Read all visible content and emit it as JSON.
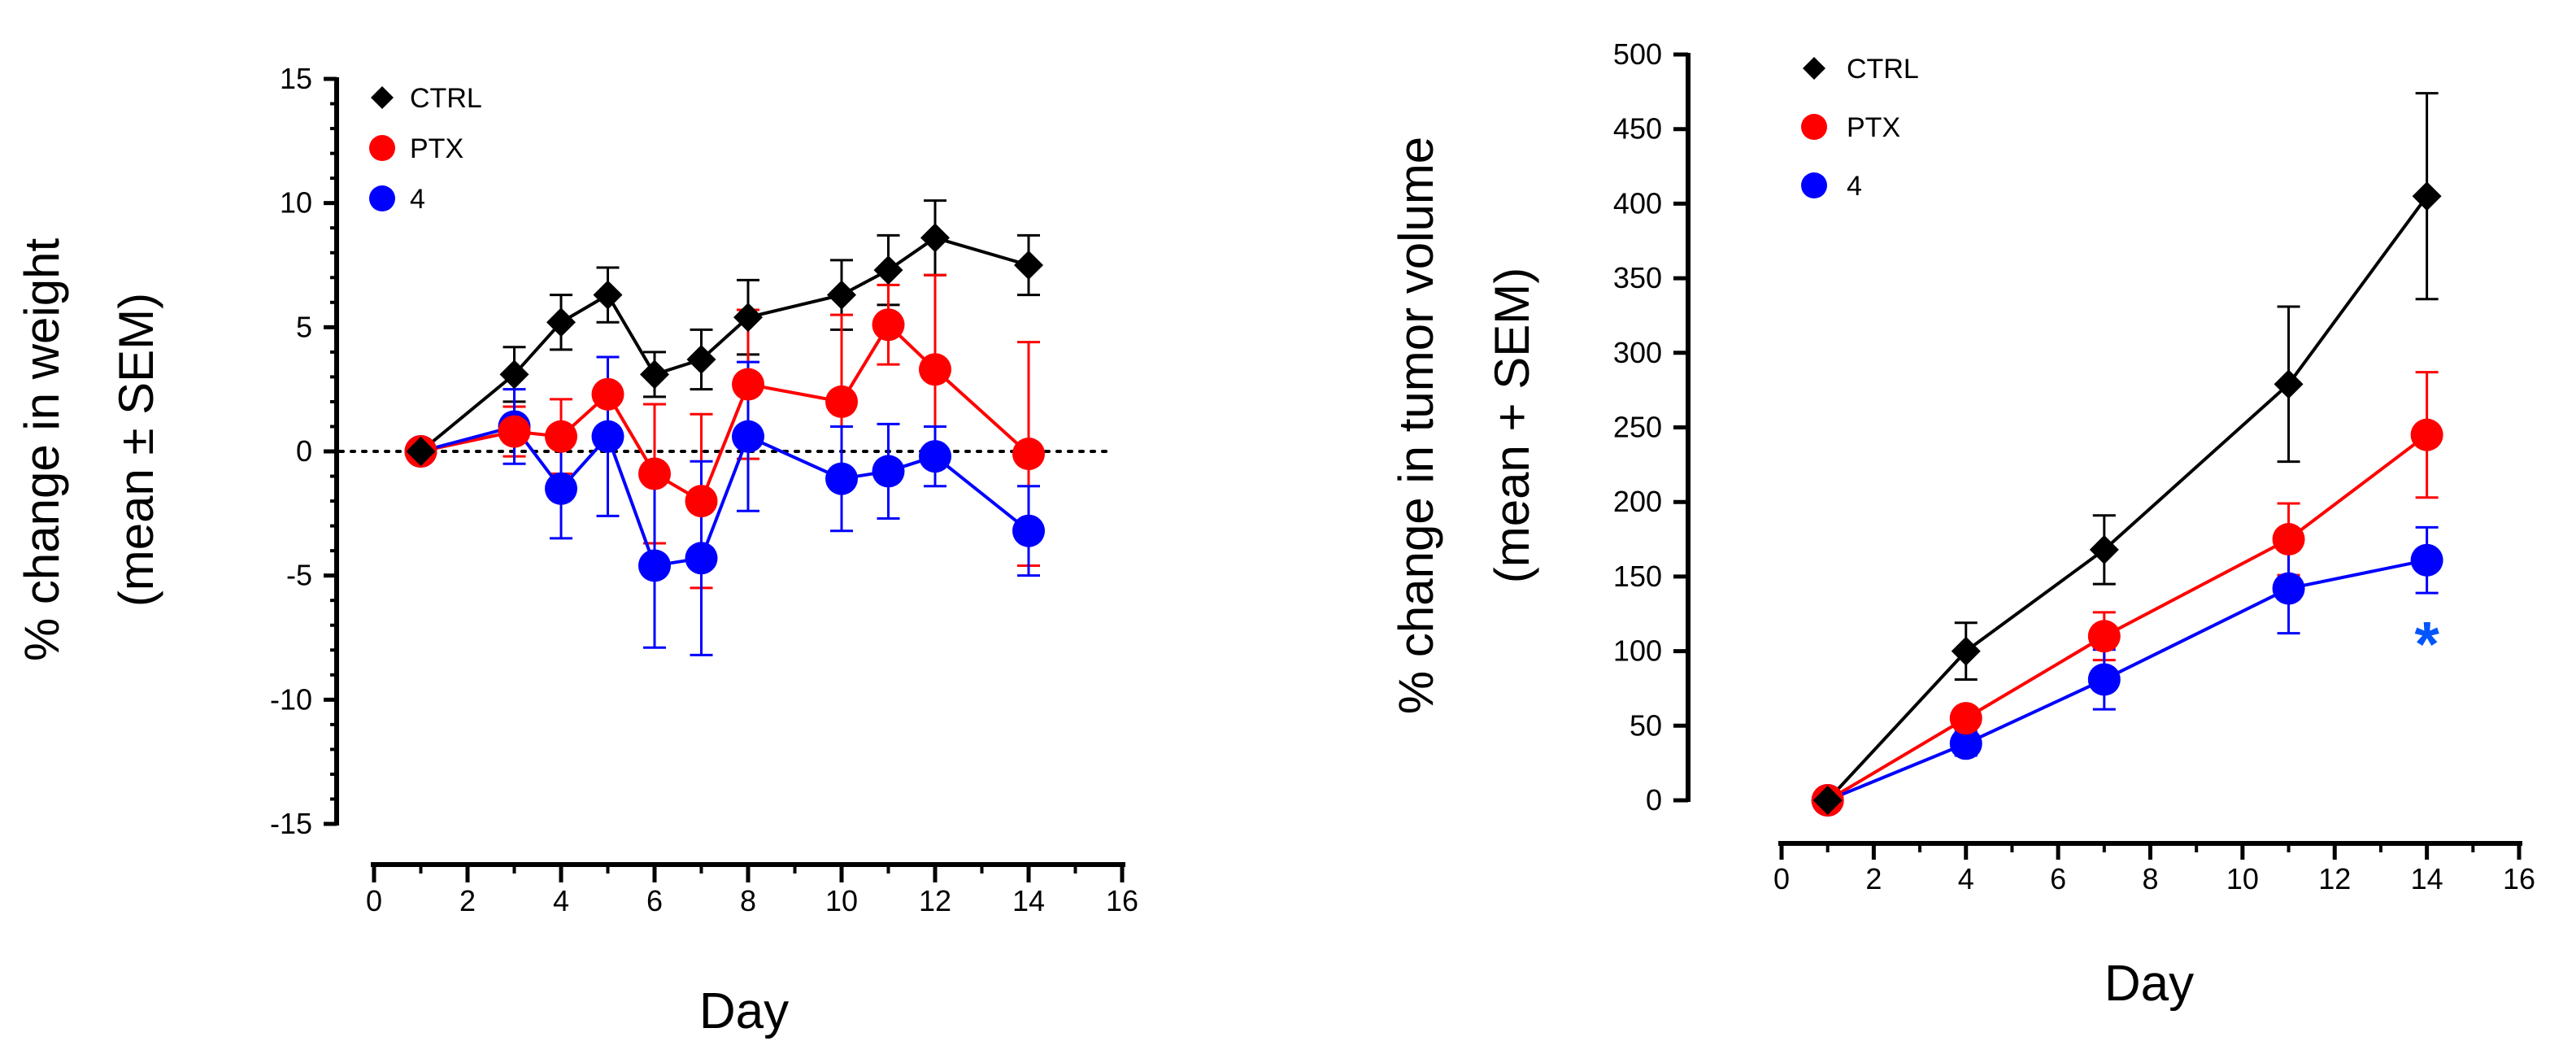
{
  "chart_data": [
    {
      "type": "line",
      "title": "",
      "xlabel": "Day",
      "ylabel_line1": "% change in weight",
      "ylabel_line2": "(mean ± SEM)",
      "xlim": [
        0,
        16
      ],
      "ylim": [
        -15,
        15
      ],
      "xticks": [
        0,
        2,
        4,
        6,
        8,
        10,
        12,
        14,
        16
      ],
      "yticks": [
        -15,
        -10,
        -5,
        0,
        5,
        10,
        15
      ],
      "reference_line": 0,
      "legend_position": "top-left",
      "series": [
        {
          "name": "CTRL",
          "color": "#000000",
          "marker": "diamond",
          "x": [
            1,
            3,
            4,
            5,
            6,
            7,
            8,
            10,
            11,
            12,
            14
          ],
          "y": [
            0,
            3.1,
            5.2,
            6.3,
            3.1,
            3.7,
            5.4,
            6.3,
            7.3,
            8.6,
            7.5
          ],
          "err": [
            0,
            1.1,
            1.1,
            1.1,
            0.9,
            1.2,
            1.5,
            1.4,
            1.4,
            1.5,
            1.2
          ]
        },
        {
          "name": "PTX",
          "color": "#ff0000",
          "marker": "circle",
          "x": [
            1,
            3,
            4,
            5,
            6,
            7,
            8,
            10,
            11,
            12,
            14
          ],
          "y": [
            0,
            0.8,
            0.6,
            2.3,
            -0.9,
            -2.0,
            2.7,
            2.0,
            5.1,
            3.3,
            -0.1
          ],
          "err": [
            0,
            1.0,
            1.5,
            1.5,
            2.8,
            3.5,
            3.0,
            3.5,
            1.6,
            3.8,
            4.5
          ]
        },
        {
          "name": "4",
          "color": "#0000ff",
          "marker": "circle",
          "x": [
            1,
            3,
            4,
            5,
            6,
            7,
            8,
            10,
            11,
            12,
            14
          ],
          "y": [
            0,
            1.0,
            -1.5,
            0.6,
            -4.6,
            -4.3,
            0.6,
            -1.1,
            -0.8,
            -0.2,
            -3.2
          ],
          "err": [
            0,
            1.5,
            2.0,
            3.2,
            3.3,
            3.9,
            3.0,
            2.1,
            1.9,
            1.2,
            1.8
          ]
        }
      ]
    },
    {
      "type": "line",
      "title": "",
      "xlabel": "Day",
      "ylabel_line1": "% change in tumor volume",
      "ylabel_line2": "(mean + SEM)",
      "xlim": [
        0,
        16
      ],
      "ylim": [
        0,
        500
      ],
      "xticks": [
        0,
        2,
        4,
        6,
        8,
        10,
        12,
        14,
        16
      ],
      "yticks": [
        0,
        50,
        100,
        150,
        200,
        250,
        300,
        350,
        400,
        450,
        500
      ],
      "legend_position": "top-left",
      "annotation": {
        "text": "*",
        "x": 14,
        "y": 112,
        "color": "#0055ff"
      },
      "series": [
        {
          "name": "CTRL",
          "color": "#000000",
          "marker": "diamond",
          "x": [
            1,
            4,
            7,
            11,
            14
          ],
          "y": [
            0,
            100,
            168,
            279,
            405
          ],
          "err": [
            0,
            19,
            23,
            52,
            69
          ]
        },
        {
          "name": "PTX",
          "color": "#ff0000",
          "marker": "circle",
          "x": [
            1,
            4,
            7,
            11,
            14
          ],
          "y": [
            0,
            55,
            110,
            175,
            245
          ],
          "err": [
            0,
            6,
            16,
            24,
            42
          ]
        },
        {
          "name": "4",
          "color": "#0000ff",
          "marker": "circle",
          "x": [
            1,
            4,
            7,
            11,
            14
          ],
          "y": [
            0,
            38,
            81,
            142,
            161
          ],
          "err": [
            0,
            8,
            20,
            30,
            22
          ]
        }
      ]
    }
  ]
}
